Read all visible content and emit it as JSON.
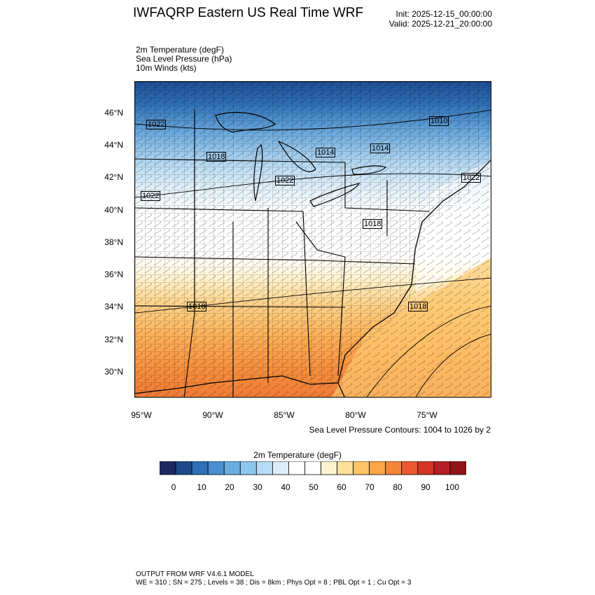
{
  "header": {
    "title": "IWFAQRP Eastern US Real Time WRF",
    "init": "Init: 2025-12-15_00:00:00",
    "valid": "Valid: 2025-12-21_20:00:00"
  },
  "fields": [
    "2m Temperature   (degF)",
    "Sea Level Pressure   (hPa)",
    "10m Winds   (kts)"
  ],
  "map": {
    "lat_labels": [
      "46°N",
      "44°N",
      "42°N",
      "40°N",
      "38°N",
      "36°N",
      "34°N",
      "32°N",
      "30°N"
    ],
    "lon_labels": [
      "95°W",
      "90°W",
      "85°W",
      "80°W",
      "75°W"
    ],
    "slp_labels": [
      "1022",
      "1018",
      "1014",
      "1010",
      "1014",
      "1022",
      "1022",
      "1018",
      "1018",
      "1022",
      "1018"
    ],
    "contour_note": "Sea Level Pressure Contours: 1004 to 1026 by 2"
  },
  "colorbar": {
    "title": "2m Temperature  (degF)",
    "colors": [
      "#1b2a63",
      "#1f4a8c",
      "#2e6fb8",
      "#4a8fd0",
      "#6aaee0",
      "#8ec7ee",
      "#b7dbf5",
      "#dcedf9",
      "#ffffff",
      "#ffffff",
      "#fff4cf",
      "#ffe19a",
      "#fdc565",
      "#fca648",
      "#f5853a",
      "#e95a30",
      "#d23527",
      "#b51e22",
      "#8f1518"
    ],
    "ticks": [
      "0",
      "10",
      "20",
      "30",
      "40",
      "50",
      "60",
      "70",
      "80",
      "90",
      "100"
    ]
  },
  "footer": {
    "line1": "OUTPUT FROM WRF V4.6.1 MODEL",
    "line2": "WE = 310 ; SN = 275 ; Levels = 38 ; Dis = 8km ; Phys Opt = 8 ; PBL Opt = 1 ; Cu Opt = 3"
  }
}
